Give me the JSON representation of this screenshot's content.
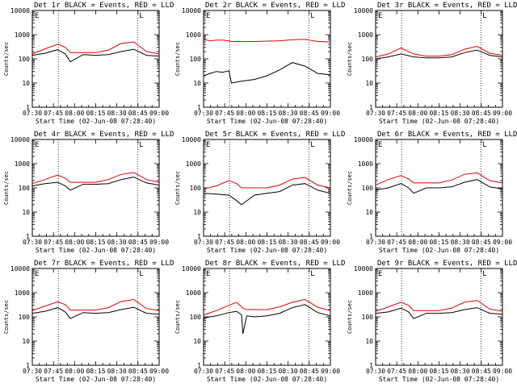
{
  "common": {
    "xlabel": "Start Time (02-Jun-08 07:28:40)",
    "ylabel": "Counts/sec",
    "x_tick_labels": [
      "07:30",
      "07:45",
      "08:00",
      "08:15",
      "08:30",
      "08:45",
      "09:00"
    ],
    "y_tick_labels": [
      "1",
      "10",
      "100",
      "1000",
      "10000"
    ],
    "legend_glyphs": [
      "E",
      "L"
    ],
    "colors": {
      "events": "#000000",
      "lld": "#e00000",
      "axes": "#000000",
      "background": "#ffffff"
    }
  },
  "chart_data": [
    {
      "type": "line",
      "title": "Det 1r BLACK = Events, RED = LLD",
      "xlim": [
        0,
        100
      ],
      "ylim": [
        1,
        10000
      ],
      "yscale": "log",
      "vlines": [
        20.5,
        83
      ],
      "x": [
        0,
        10,
        20,
        26,
        30,
        40,
        50,
        60,
        70,
        80,
        90,
        100
      ],
      "series": [
        {
          "name": "Events",
          "values": [
            140,
            170,
            240,
            160,
            75,
            150,
            140,
            150,
            200,
            250,
            140,
            130
          ]
        },
        {
          "name": "LLD",
          "values": [
            160,
            260,
            400,
            300,
            180,
            180,
            180,
            230,
            430,
            500,
            200,
            160
          ]
        }
      ]
    },
    {
      "type": "line",
      "title": "Det 2r BLACK = Events, RED = LLD",
      "xlim": [
        0,
        100
      ],
      "ylim": [
        1,
        10000
      ],
      "yscale": "log",
      "vlines": [
        20.5,
        83
      ],
      "x": [
        0,
        5,
        10,
        15,
        20,
        22,
        30,
        40,
        50,
        60,
        70,
        80,
        90,
        100
      ],
      "series": [
        {
          "name": "Events",
          "values": [
            20,
            25,
            30,
            28,
            32,
            10,
            12,
            14,
            20,
            35,
            70,
            50,
            25,
            22
          ]
        },
        {
          "name": "LLD",
          "values": [
            650,
            550,
            600,
            600,
            550,
            520,
            520,
            520,
            540,
            560,
            620,
            640,
            520,
            500
          ]
        }
      ]
    },
    {
      "type": "line",
      "title": "Det 3r BLACK = Events, RED = LLD",
      "xlim": [
        0,
        100
      ],
      "ylim": [
        1,
        10000
      ],
      "yscale": "log",
      "vlines": [
        20.5,
        83
      ],
      "x": [
        0,
        10,
        20,
        30,
        40,
        50,
        60,
        70,
        80,
        90,
        100
      ],
      "series": [
        {
          "name": "Events",
          "values": [
            100,
            120,
            160,
            120,
            110,
            110,
            120,
            180,
            230,
            140,
            120
          ]
        },
        {
          "name": "LLD",
          "values": [
            120,
            160,
            280,
            160,
            130,
            130,
            150,
            250,
            330,
            170,
            140
          ]
        }
      ]
    },
    {
      "type": "line",
      "title": "Det 4r BLACK = Events, RED = LLD",
      "xlim": [
        0,
        100
      ],
      "ylim": [
        1,
        10000
      ],
      "yscale": "log",
      "vlines": [
        20.5,
        83
      ],
      "x": [
        0,
        10,
        20,
        26,
        30,
        40,
        50,
        60,
        70,
        80,
        90,
        100
      ],
      "series": [
        {
          "name": "Events",
          "values": [
            120,
            150,
            170,
            120,
            80,
            140,
            140,
            150,
            220,
            280,
            160,
            130
          ]
        },
        {
          "name": "LLD",
          "values": [
            150,
            220,
            340,
            250,
            170,
            170,
            170,
            220,
            360,
            430,
            220,
            170
          ]
        }
      ]
    },
    {
      "type": "line",
      "title": "Det 5r BLACK = Events, RED = LLD",
      "xlim": [
        0,
        100
      ],
      "ylim": [
        1,
        10000
      ],
      "yscale": "log",
      "vlines": [
        20.5,
        83
      ],
      "x": [
        0,
        10,
        20,
        26,
        30,
        40,
        50,
        60,
        70,
        80,
        90,
        100
      ],
      "series": [
        {
          "name": "Events",
          "values": [
            60,
            55,
            50,
            30,
            20,
            50,
            60,
            70,
            130,
            150,
            80,
            60
          ]
        },
        {
          "name": "LLD",
          "values": [
            90,
            120,
            200,
            150,
            100,
            100,
            100,
            130,
            230,
            270,
            130,
            100
          ]
        }
      ]
    },
    {
      "type": "line",
      "title": "Det 6r BLACK = Events, RED = LLD",
      "xlim": [
        0,
        100
      ],
      "ylim": [
        1,
        10000
      ],
      "yscale": "log",
      "vlines": [
        20.5,
        83
      ],
      "x": [
        0,
        10,
        20,
        26,
        30,
        40,
        50,
        60,
        70,
        80,
        90,
        100
      ],
      "series": [
        {
          "name": "Events",
          "values": [
            80,
            100,
            150,
            100,
            60,
            100,
            100,
            110,
            170,
            220,
            110,
            90
          ]
        },
        {
          "name": "LLD",
          "values": [
            130,
            220,
            320,
            230,
            160,
            160,
            160,
            210,
            360,
            420,
            200,
            160
          ]
        }
      ]
    },
    {
      "type": "line",
      "title": "Det 7r BLACK = Events, RED = LLD",
      "xlim": [
        0,
        100
      ],
      "ylim": [
        1,
        10000
      ],
      "yscale": "log",
      "vlines": [
        20.5,
        83
      ],
      "x": [
        0,
        10,
        20,
        26,
        30,
        40,
        50,
        60,
        70,
        80,
        90,
        100
      ],
      "series": [
        {
          "name": "Events",
          "values": [
            140,
            170,
            240,
            160,
            85,
            150,
            140,
            150,
            200,
            250,
            140,
            130
          ]
        },
        {
          "name": "LLD",
          "values": [
            180,
            280,
            420,
            320,
            190,
            190,
            190,
            240,
            430,
            520,
            220,
            180
          ]
        }
      ]
    },
    {
      "type": "line",
      "title": "Det 8r BLACK = Events, RED = LLD",
      "xlim": [
        0,
        100
      ],
      "ylim": [
        1,
        10000
      ],
      "yscale": "log",
      "vlines": [
        20.5,
        83
      ],
      "x": [
        0,
        10,
        20,
        26,
        30,
        31,
        34,
        40,
        50,
        60,
        70,
        80,
        90,
        100
      ],
      "series": [
        {
          "name": "Events",
          "values": [
            90,
            110,
            150,
            170,
            120,
            20,
            110,
            100,
            110,
            140,
            240,
            320,
            150,
            110
          ]
        },
        {
          "name": "LLD",
          "values": [
            120,
            180,
            300,
            400,
            260,
            230,
            200,
            200,
            200,
            260,
            400,
            520,
            250,
            180
          ]
        }
      ]
    },
    {
      "type": "line",
      "title": "Det 9r BLACK = Events, RED = LLD",
      "xlim": [
        0,
        100
      ],
      "ylim": [
        1,
        10000
      ],
      "yscale": "log",
      "vlines": [
        20.5,
        83
      ],
      "x": [
        0,
        10,
        20,
        26,
        30,
        40,
        50,
        60,
        70,
        80,
        90,
        100
      ],
      "series": [
        {
          "name": "Events",
          "values": [
            140,
            160,
            230,
            160,
            85,
            140,
            140,
            150,
            200,
            240,
            140,
            130
          ]
        },
        {
          "name": "LLD",
          "values": [
            170,
            260,
            400,
            300,
            180,
            180,
            180,
            230,
            400,
            480,
            210,
            170
          ]
        }
      ]
    }
  ]
}
